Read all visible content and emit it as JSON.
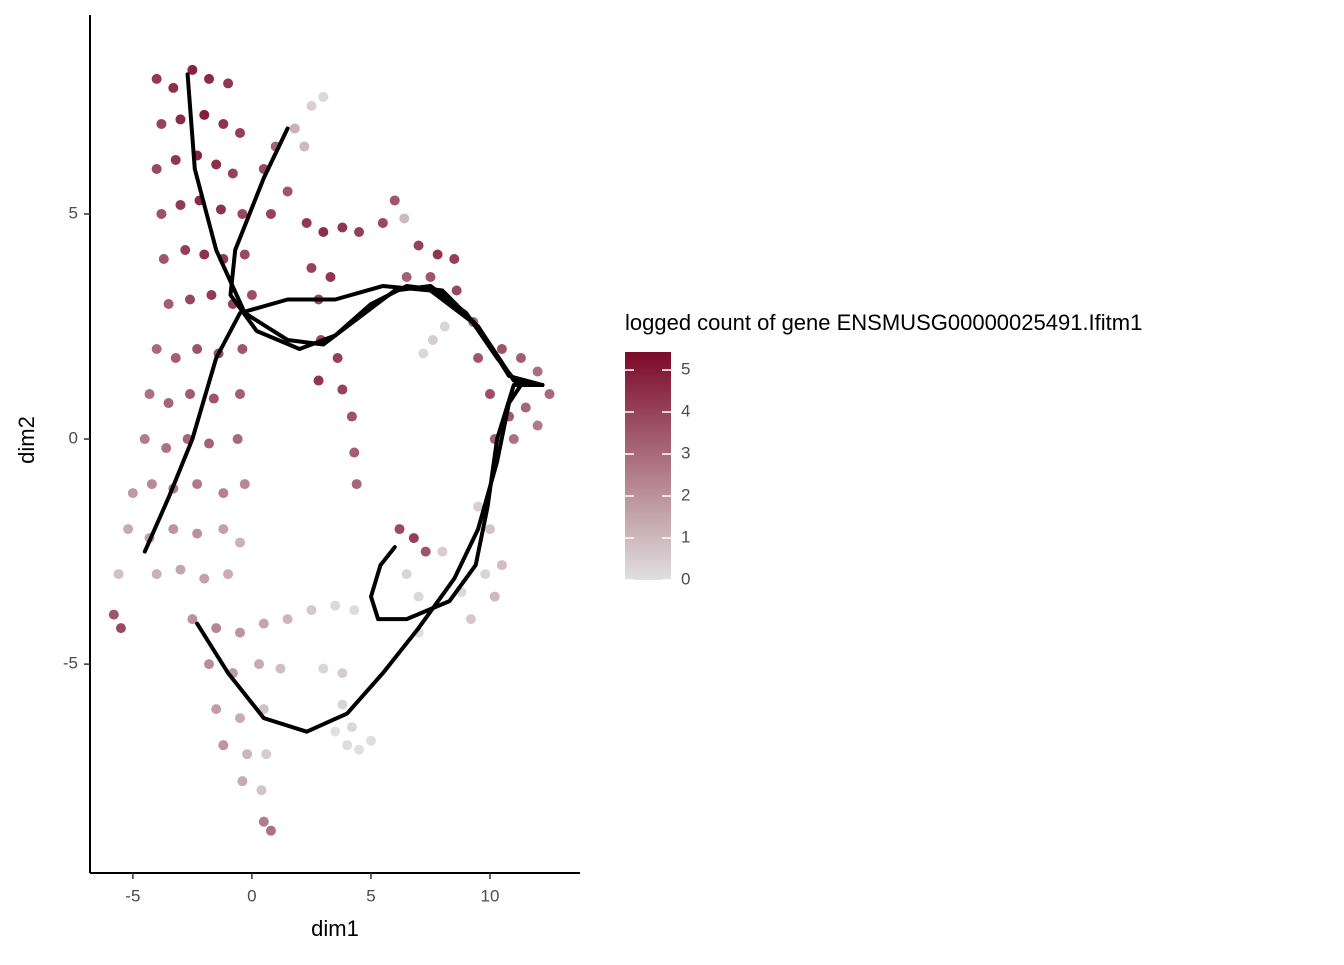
{
  "chart_data": {
    "type": "scatter",
    "x_label": "dim1",
    "y_label": "dim2",
    "xlim": [
      -6.8,
      13.78
    ],
    "ylim": [
      -9.64,
      9.42
    ],
    "xticks": [
      -5,
      0,
      5,
      10
    ],
    "yticks": [
      -5,
      0,
      5
    ],
    "grid": false,
    "x": [
      -4,
      -3.3,
      -2.5,
      -1.8,
      -1,
      -3.8,
      -3,
      -2,
      -1.2,
      -0.5,
      -4,
      -3.2,
      -2.3,
      -1.5,
      -0.8,
      -3.8,
      -3,
      -2.2,
      -1.3,
      -0.4,
      -3.7,
      -2.8,
      -2,
      -1.2,
      -0.3,
      -3.5,
      -2.6,
      -1.7,
      -0.8,
      0,
      0.5,
      1,
      1.8,
      2.5,
      3,
      2.2,
      1.5,
      0.8,
      -4,
      -3.2,
      -2.3,
      -1.4,
      -0.4,
      -4.3,
      -3.5,
      -2.6,
      -1.6,
      -0.5,
      -4.5,
      -3.6,
      -2.7,
      -1.8,
      -0.6,
      -5,
      -4.2,
      -3.3,
      -2.3,
      -1.2,
      -0.3,
      -5.2,
      -4.3,
      -3.3,
      -2.3,
      -1.2,
      -0.5,
      -4,
      -3,
      -2,
      -1,
      -5.6,
      -5.8,
      -5.5,
      -2.5,
      -1.5,
      -0.5,
      0.5,
      1.5,
      2.5,
      3.5,
      4.3,
      -1.8,
      -0.8,
      0.3,
      1.2,
      3,
      3.8,
      -1.5,
      -0.5,
      0.5,
      -1.2,
      -0.2,
      0.6,
      -0.4,
      0.4,
      0.5,
      0.8,
      3.5,
      4,
      4.5,
      5,
      4.2,
      3.8,
      2.3,
      3,
      3.8,
      4.5,
      2.5,
      3.3,
      2.8,
      5.5,
      6,
      6.4,
      2.9,
      3.6,
      2.8,
      3.8,
      4.2,
      4.3,
      4.4,
      7,
      7.8,
      8.5,
      6.5,
      7.5,
      8.6,
      8.1,
      7.6,
      9.3,
      9.5,
      7.2,
      10.5,
      11.3,
      12,
      12.5,
      11.5,
      10.8,
      10,
      10.2,
      11,
      12,
      9.5,
      10,
      10.5,
      9.8,
      10.2,
      9.2,
      8.8,
      6.2,
      6.8,
      7.3,
      6.5,
      7,
      7,
      8
    ],
    "y": [
      8,
      7.8,
      8.2,
      8,
      7.9,
      7,
      7.1,
      7.2,
      7,
      6.8,
      6,
      6.2,
      6.3,
      6.1,
      5.9,
      5,
      5.2,
      5.3,
      5.1,
      5,
      4,
      4.2,
      4.1,
      4,
      4.1,
      3,
      3.1,
      3.2,
      3,
      3.2,
      6,
      6.5,
      6.9,
      7.4,
      7.6,
      6.5,
      5.5,
      5,
      2,
      1.8,
      2,
      1.9,
      2,
      1,
      0.8,
      1,
      0.9,
      1,
      0,
      -0.2,
      0,
      -0.1,
      0,
      -1.2,
      -1,
      -1.1,
      -1,
      -1.2,
      -1,
      -2,
      -2.2,
      -2,
      -2.1,
      -2,
      -2.3,
      -3,
      -2.9,
      -3.1,
      -3,
      -3,
      -3.9,
      -4.2,
      -4,
      -4.2,
      -4.3,
      -4.1,
      -4,
      -3.8,
      -3.7,
      -3.8,
      -5,
      -5.2,
      -5,
      -5.1,
      -5.1,
      -5.2,
      -6,
      -6.2,
      -6,
      -6.8,
      -7,
      -7,
      -7.6,
      -7.8,
      -8.5,
      -8.7,
      -6.5,
      -6.8,
      -6.9,
      -6.7,
      -6.4,
      -5.9,
      4.8,
      4.6,
      4.7,
      4.6,
      3.8,
      3.6,
      3.1,
      4.8,
      5.3,
      4.9,
      2.2,
      1.8,
      1.3,
      1.1,
      0.5,
      -0.3,
      -1,
      4.3,
      4.1,
      4,
      3.6,
      3.6,
      3.3,
      2.5,
      2.2,
      2.6,
      1.8,
      1.9,
      2,
      1.8,
      1.5,
      1,
      0.7,
      0.5,
      1,
      0,
      0,
      0.3,
      -1.5,
      -2,
      -2.8,
      -3,
      -3.5,
      -4,
      -3.4,
      -2,
      -2.2,
      -2.5,
      -3,
      -3.5,
      -4.3,
      -2.5
    ],
    "values": [
      4.2,
      4.5,
      4.8,
      4.6,
      4.3,
      4,
      4.6,
      4.9,
      4.4,
      4.1,
      3.8,
      4.3,
      4.7,
      4.5,
      4,
      3.6,
      4.2,
      4.6,
      4.4,
      3.9,
      3.5,
      4.1,
      4.4,
      4.2,
      3.8,
      3.3,
      3.9,
      4.2,
      4,
      3.7,
      3.8,
      3.2,
      1.2,
      0.4,
      0.2,
      1,
      3.5,
      4,
      3,
      3.3,
      3.6,
      3.7,
      3.5,
      2.8,
      3.1,
      3.4,
      3.5,
      3.3,
      2.5,
      2.8,
      3.1,
      3.2,
      3,
      1.8,
      2.2,
      2.5,
      2.6,
      2.4,
      2.2,
      1.4,
      1.6,
      1.9,
      2,
      1.6,
      1.2,
      1.2,
      1.5,
      1.6,
      1.3,
      0.8,
      3.5,
      3.8,
      2,
      2.3,
      1.9,
      1.5,
      1.1,
      0.6,
      0.2,
      0.1,
      2.1,
      1.8,
      1.4,
      0.9,
      0.3,
      0.5,
      1.7,
      1.3,
      0.8,
      1.9,
      1.1,
      0.5,
      1.4,
      0.7,
      2.5,
      2.8,
      0,
      0.1,
      0,
      0.05,
      0.2,
      0.3,
      4.2,
      4.5,
      4.3,
      4.1,
      4,
      4.3,
      3.9,
      3.8,
      3.5,
      1,
      3.9,
      4.1,
      4.3,
      4,
      3.6,
      3.3,
      3.1,
      4,
      4.3,
      4.1,
      3.2,
      3.5,
      3.8,
      0.3,
      0.5,
      3.2,
      3.5,
      0.2,
      3.6,
      3.3,
      2.9,
      3,
      3.1,
      3.4,
      3.7,
      3.2,
      2.8,
      2.6,
      0.4,
      0.7,
      0.9,
      0.3,
      1,
      0.6,
      0.2,
      3.8,
      4.1,
      3.5,
      0.3,
      0.2,
      0.1,
      0.5
    ],
    "curves": [
      {
        "x": [
          -2.7,
          -2.4,
          -1.5,
          -0.3,
          1.5,
          3,
          4.5,
          6,
          7.5,
          9,
          10.3,
          11.2,
          12.2
        ],
        "y": [
          8.1,
          6,
          4.2,
          2.8,
          2.2,
          2.1,
          2.7,
          3.3,
          3.4,
          2.8,
          1.8,
          1.2,
          1.2
        ]
      },
      {
        "x": [
          1.5,
          0.5,
          -0.7,
          -0.9,
          0.2,
          2,
          3.5,
          5,
          6.5,
          8,
          9.5,
          10.8,
          12.2
        ],
        "y": [
          6.9,
          5.8,
          4.2,
          3.2,
          2.4,
          2,
          2.3,
          3,
          3.4,
          3.3,
          2.5,
          1.4,
          1.2
        ]
      },
      {
        "x": [
          -4.5,
          -3.5,
          -2.5,
          -1.5,
          -0.5,
          1.5,
          3.5,
          5.5,
          7.5,
          9.5,
          11,
          12.2
        ],
        "y": [
          -2.5,
          -1.3,
          0,
          1.8,
          2.8,
          3.1,
          3.1,
          3.4,
          3.3,
          2.5,
          1.3,
          1.2
        ]
      },
      {
        "x": [
          12.2,
          11,
          10.3,
          9.9,
          9.4,
          8.3,
          6.5,
          5.3,
          5,
          5.4,
          6
        ],
        "y": [
          1.2,
          1.2,
          0,
          -1.5,
          -2.8,
          -3.6,
          -4,
          -4,
          -3.5,
          -2.8,
          -2.4
        ]
      },
      {
        "x": [
          -2.3,
          -1,
          0.5,
          2.3,
          4,
          5.5,
          7,
          8.5,
          9.5,
          10.3,
          10.8,
          11.3,
          12.2
        ],
        "y": [
          -4.1,
          -5.2,
          -6.2,
          -6.5,
          -6.1,
          -5.2,
          -4.2,
          -3.1,
          -2,
          -0.5,
          0.8,
          1.2,
          1.2
        ]
      }
    ],
    "curve_color": "#000000",
    "colorbar_title": "logged count of gene ENSMUSG00000025491.Ifitm1",
    "clim": [
      0,
      5.43
    ],
    "colorbar_ticks": [
      0,
      1,
      2,
      3,
      4,
      5
    ],
    "color_low": "#e0e0e0",
    "color_high": "#7b0a2a"
  }
}
